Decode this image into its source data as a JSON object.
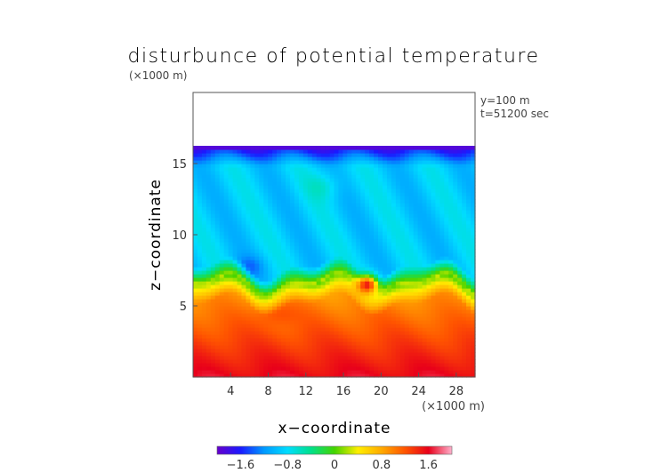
{
  "chart_data": {
    "type": "heatmap",
    "title": "disturbunce of potential temperature",
    "xlabel": "x−coordinate",
    "ylabel": "z−coordinate",
    "x_unit": "(×1000 m)",
    "y_unit": "(×1000 m)",
    "info": [
      "y=100 m",
      "t=51200 sec"
    ],
    "xlim": [
      0,
      30
    ],
    "ylim": [
      0,
      20
    ],
    "model_top": 16.3,
    "x_ticks": [
      4,
      8,
      12,
      16,
      20,
      24,
      28
    ],
    "y_ticks": [
      5,
      10,
      15
    ],
    "colorbar": {
      "vmin": -2.0,
      "vmax": 2.0,
      "ticks": [
        -1.6,
        -0.8,
        0,
        0.8,
        1.6
      ],
      "tick_labels": [
        "−1.6",
        "−0.8",
        "0",
        "0.8",
        "1.6"
      ]
    },
    "features": [
      {
        "region": "z 0-1.5",
        "value": 1.5
      },
      {
        "region": "z 1.5-6",
        "value": 1.0
      },
      {
        "region": "z 6-7.5",
        "value": 0.2
      },
      {
        "region": "z 7.5-15",
        "value": -0.8
      },
      {
        "region": "z 15-16.3",
        "value": -1.4
      },
      {
        "region": "bubble x18.5 z6.5",
        "value": 1.5
      }
    ],
    "grid": false,
    "legend": "colorbar-bottom"
  },
  "colors": {
    "palette": [
      "#6600cc",
      "#1a1aff",
      "#0099ff",
      "#00ddff",
      "#00e08a",
      "#44d400",
      "#ffee00",
      "#ffaa00",
      "#ff5500",
      "#e8001a",
      "#ffb0cc"
    ]
  }
}
